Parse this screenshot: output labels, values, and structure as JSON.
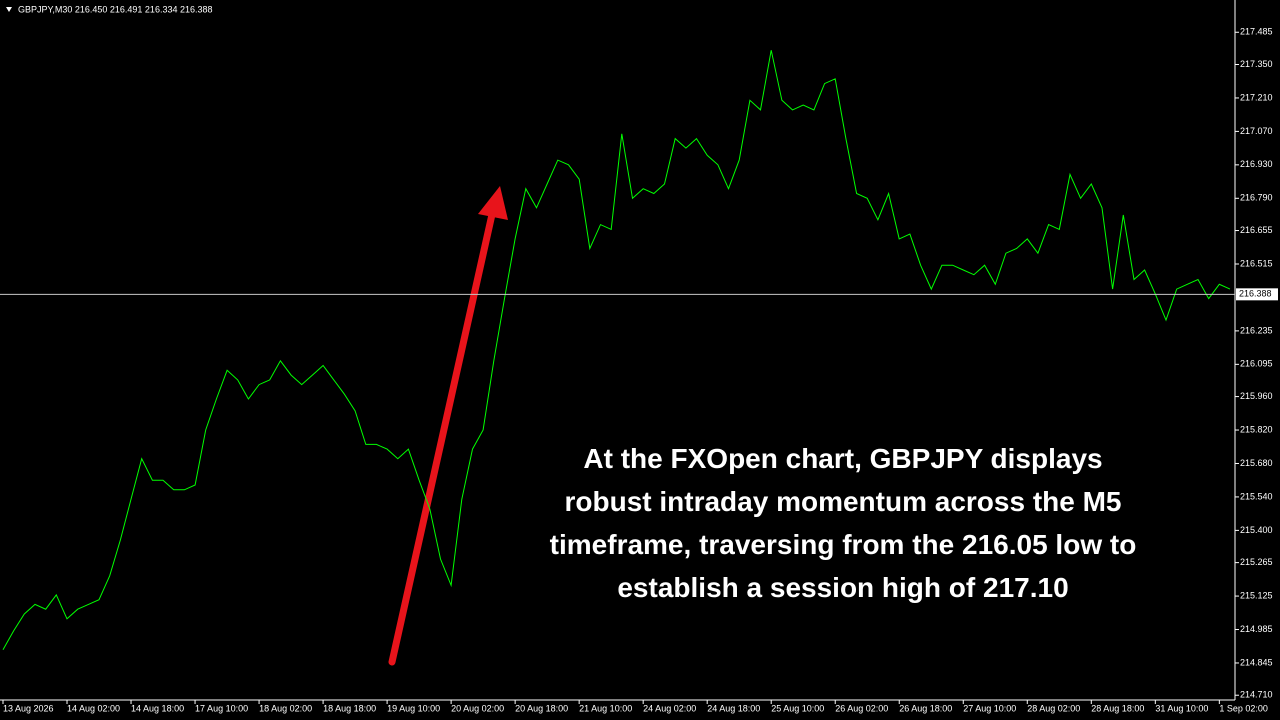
{
  "chart_data": {
    "type": "line",
    "title": "GBPJPY,M30  216.450 216.491 216.334 216.388",
    "annotation": "At the FXOpen chart, GBPJPY displays robust intraday momentum across the M5 timeframe, traversing from the 216.05 low to establish a session high of 217.10",
    "color": "#00ff00",
    "price_line_color": "#c8c8c8",
    "current_price": 216.388,
    "categories": [
      "13 Aug 2026",
      null,
      null,
      null,
      null,
      null,
      "14 Aug 02:00",
      null,
      null,
      null,
      null,
      null,
      "14 Aug 18:00",
      null,
      null,
      null,
      null,
      null,
      "17 Aug 10:00",
      null,
      null,
      null,
      null,
      null,
      "18 Aug 02:00",
      null,
      null,
      null,
      null,
      null,
      "18 Aug 18:00",
      null,
      null,
      null,
      null,
      null,
      "19 Aug 10:00",
      null,
      null,
      null,
      null,
      null,
      "20 Aug 02:00",
      null,
      null,
      null,
      null,
      null,
      "20 Aug 18:00",
      null,
      null,
      null,
      null,
      null,
      "21 Aug 10:00",
      null,
      null,
      null,
      null,
      null,
      "24 Aug 02:00",
      null,
      null,
      null,
      null,
      null,
      "24 Aug 18:00",
      null,
      null,
      null,
      null,
      null,
      "25 Aug 10:00",
      null,
      null,
      null,
      null,
      null,
      "26 Aug 02:00",
      null,
      null,
      null,
      null,
      null,
      "26 Aug 18:00",
      null,
      null,
      null,
      null,
      null,
      "27 Aug 10:00",
      null,
      null,
      null,
      null,
      null,
      "28 Aug 02:00",
      null,
      null,
      null,
      null,
      null,
      "28 Aug 18:00",
      null,
      null,
      null,
      null,
      null,
      "31 Aug 10:00",
      null,
      null,
      null,
      null,
      null,
      "1 Sep 02:00",
      null
    ],
    "values": [
      214.9,
      214.98,
      215.05,
      215.09,
      215.07,
      215.13,
      215.03,
      215.07,
      215.09,
      215.11,
      215.21,
      215.36,
      215.53,
      215.7,
      215.61,
      215.61,
      215.57,
      215.57,
      215.59,
      215.82,
      215.95,
      216.07,
      216.03,
      215.95,
      216.01,
      216.03,
      216.11,
      216.05,
      216.01,
      216.05,
      216.09,
      216.03,
      215.97,
      215.9,
      215.76,
      215.76,
      215.74,
      215.7,
      215.74,
      215.61,
      215.49,
      215.28,
      215.17,
      215.53,
      215.74,
      215.82,
      216.11,
      216.37,
      216.62,
      216.83,
      216.75,
      216.85,
      216.95,
      216.93,
      216.87,
      216.58,
      216.68,
      216.66,
      217.06,
      216.79,
      216.83,
      216.81,
      216.85,
      217.04,
      217.0,
      217.04,
      216.97,
      216.93,
      216.83,
      216.95,
      217.2,
      217.16,
      217.41,
      217.2,
      217.16,
      217.18,
      217.16,
      217.27,
      217.29,
      217.04,
      216.81,
      216.79,
      216.7,
      216.81,
      216.62,
      216.64,
      216.51,
      216.41,
      216.51,
      216.51,
      216.49,
      216.47,
      216.51,
      216.43,
      216.56,
      216.58,
      216.62,
      216.56,
      216.68,
      216.66,
      216.89,
      216.79,
      216.85,
      216.75,
      216.41,
      216.72,
      216.45,
      216.49,
      216.39,
      216.28,
      216.41,
      216.43,
      216.45,
      216.37,
      216.43,
      216.41
    ],
    "ylim": [
      214.69,
      217.62
    ],
    "yticks": [
      217.485,
      {
        "value": 217.35,
        "label": "217.350"
      },
      {
        "value": 217.21,
        "label": "217.210"
      },
      {
        "value": 217.07,
        "label": "217.070"
      },
      {
        "value": 216.93,
        "label": "216.930"
      },
      {
        "value": 216.79,
        "label": "216.790"
      },
      216.655,
      216.515,
      216.235,
      216.095,
      {
        "value": 215.96,
        "label": "215.960"
      },
      {
        "value": 215.82,
        "label": "215.820"
      },
      {
        "value": 215.68,
        "label": "215.680"
      },
      {
        "value": 215.54,
        "label": "215.540"
      },
      {
        "value": 215.4,
        "label": "215.400"
      },
      215.265,
      215.125,
      214.985,
      214.845,
      {
        "value": 214.71,
        "label": "214.710"
      }
    ]
  }
}
